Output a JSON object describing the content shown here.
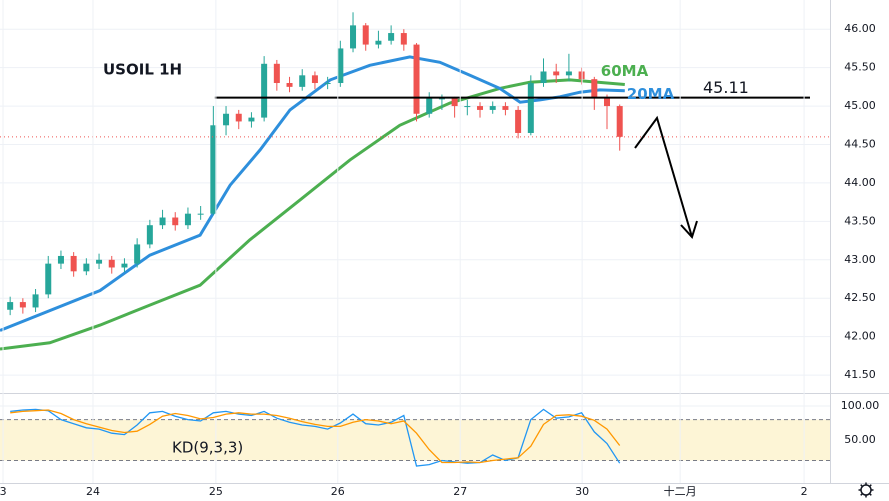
{
  "chart_data": [
    {
      "type": "candlestick",
      "title": "USOIL 1H",
      "x": [
        2,
        4.5,
        7,
        9.5,
        12,
        14.5,
        17,
        19.5,
        22,
        24.5,
        27,
        29.5,
        32,
        34.5,
        37,
        39.5,
        42,
        44.5,
        47,
        49.5,
        52,
        54.5,
        57,
        59.5,
        62,
        64.5,
        67,
        69.5,
        72,
        74.5,
        77,
        79.5,
        82,
        84.5,
        87,
        89.5,
        92,
        94.5,
        97,
        99.5,
        102,
        104.5,
        107,
        109.5,
        112,
        114.5,
        117,
        119.5,
        122
      ],
      "open": [
        42.35,
        42.45,
        42.38,
        42.55,
        42.95,
        43.05,
        42.85,
        42.95,
        43.0,
        42.9,
        42.95,
        43.2,
        43.45,
        43.55,
        43.45,
        43.6,
        43.6,
        44.75,
        44.9,
        44.8,
        44.85,
        45.55,
        45.3,
        45.25,
        45.4,
        45.3,
        45.3,
        45.75,
        46.05,
        45.8,
        45.85,
        45.95,
        45.8,
        44.9,
        45.1,
        45.1,
        45.0,
        45.0,
        44.95,
        45.0,
        44.95,
        44.65,
        45.3,
        45.45,
        45.4,
        45.45,
        45.35,
        45.1,
        45.0
      ],
      "high": [
        42.52,
        42.5,
        42.62,
        43.05,
        43.12,
        43.1,
        43.02,
        43.08,
        43.05,
        43.02,
        43.28,
        43.52,
        43.65,
        43.62,
        43.68,
        43.7,
        45.0,
        45.0,
        44.95,
        44.92,
        45.65,
        45.6,
        45.38,
        45.48,
        45.45,
        45.38,
        45.85,
        46.22,
        46.08,
        45.98,
        46.05,
        46.0,
        45.82,
        45.18,
        45.15,
        45.12,
        45.08,
        45.05,
        45.06,
        45.05,
        45.0,
        45.4,
        45.62,
        45.55,
        45.68,
        45.5,
        45.38,
        45.15,
        45.02
      ],
      "low": [
        42.28,
        42.3,
        42.32,
        42.5,
        42.88,
        42.78,
        42.8,
        42.88,
        42.82,
        42.84,
        42.9,
        43.15,
        43.4,
        43.38,
        43.4,
        43.52,
        43.58,
        44.62,
        44.7,
        44.72,
        44.8,
        45.2,
        45.18,
        45.2,
        45.22,
        45.22,
        45.25,
        45.7,
        45.72,
        45.75,
        45.8,
        45.72,
        44.8,
        44.85,
        44.95,
        44.85,
        44.88,
        44.85,
        44.9,
        44.88,
        44.58,
        44.62,
        45.25,
        45.3,
        45.32,
        45.28,
        44.95,
        44.7,
        44.42
      ],
      "close": [
        42.45,
        42.38,
        42.55,
        42.95,
        43.05,
        42.85,
        42.95,
        43.0,
        42.9,
        42.95,
        43.2,
        43.45,
        43.55,
        43.45,
        43.6,
        43.6,
        44.75,
        44.9,
        44.8,
        44.85,
        45.55,
        45.3,
        45.25,
        45.4,
        45.3,
        45.3,
        45.75,
        46.05,
        45.8,
        45.85,
        45.95,
        45.8,
        44.9,
        45.1,
        45.1,
        45.0,
        45.0,
        44.95,
        45.0,
        44.95,
        44.65,
        45.3,
        45.45,
        45.4,
        45.45,
        45.35,
        45.1,
        45.0,
        44.6
      ],
      "up_color": "#26a69a",
      "down_color": "#ef5350",
      "series": [
        {
          "name": "60MA",
          "color": "#4caf50",
          "x": [
            0,
            9.8,
            19.7,
            29.5,
            39.4,
            49.2,
            59.1,
            68.9,
            78.7,
            88.6,
            98.4,
            104.3,
            112.2,
            123
          ],
          "values": [
            41.84,
            41.92,
            42.15,
            42.41,
            42.67,
            43.26,
            43.78,
            44.3,
            44.75,
            45.04,
            45.23,
            45.31,
            45.34,
            45.28
          ]
        },
        {
          "name": "20MA",
          "color": "#2e8fdc",
          "x": [
            0,
            19.7,
            29.5,
            39.4,
            45.3,
            51.2,
            57.1,
            65,
            72.8,
            80.7,
            86.6,
            92.5,
            98.4,
            102.4,
            106.3,
            110.2,
            114.2,
            118.1,
            123
          ],
          "values": [
            42.08,
            42.6,
            43.06,
            43.32,
            43.97,
            44.43,
            44.95,
            45.34,
            45.53,
            45.64,
            45.57,
            45.4,
            45.23,
            45.05,
            45.08,
            45.12,
            45.18,
            45.21,
            45.2
          ]
        }
      ],
      "level": 45.11,
      "xlim": [
        0,
        163.4
      ],
      "ylim": [
        41.28,
        46.38
      ],
      "yticks": [
        {
          "value": 46,
          "label": "46.00"
        },
        {
          "value": 45.5,
          "label": "45.50"
        },
        {
          "value": 45,
          "label": "45.00"
        },
        {
          "value": 44.5,
          "label": "44.50"
        },
        {
          "value": 44,
          "label": "44.00"
        },
        {
          "value": 43.5,
          "label": "43.50"
        },
        {
          "value": 43,
          "label": "43.00"
        },
        {
          "value": 42.5,
          "label": "42.50"
        },
        {
          "value": 42,
          "label": "42.00"
        },
        {
          "value": 41.5,
          "label": "41.50"
        }
      ],
      "grid": true
    },
    {
      "type": "line",
      "title": "KD(9,3,3)",
      "x": [
        2,
        4.5,
        7,
        9.5,
        12,
        14.5,
        17,
        19.5,
        22,
        24.5,
        27,
        29.5,
        32,
        34.5,
        37,
        39.5,
        42,
        44.5,
        47,
        49.5,
        52,
        54.5,
        57,
        59.5,
        62,
        64.5,
        67,
        69.5,
        72,
        74.5,
        77,
        79.5,
        82,
        84.5,
        87,
        89.5,
        92,
        94.5,
        97,
        99.5,
        102,
        104.5,
        107,
        109.5,
        112,
        114.5,
        117,
        119.5,
        122
      ],
      "series": [
        {
          "color": "#2196f3",
          "values": [
            92,
            94,
            95,
            93,
            80,
            74,
            68,
            66,
            60,
            58,
            72,
            90,
            92,
            85,
            80,
            78,
            90,
            92,
            88,
            86,
            92,
            82,
            76,
            72,
            70,
            66,
            75,
            88,
            74,
            72,
            76,
            86,
            12,
            14,
            20,
            18,
            16,
            17,
            28,
            20,
            24,
            80,
            95,
            82,
            84,
            90,
            62,
            45,
            16
          ]
        },
        {
          "color": "#ff9800",
          "values": [
            90,
            92,
            93,
            94,
            89,
            80,
            74,
            69,
            64,
            61,
            63,
            73,
            85,
            89,
            86,
            81,
            83,
            88,
            90,
            88,
            88,
            86,
            82,
            77,
            73,
            70,
            70,
            76,
            80,
            78,
            74,
            78,
            60,
            36,
            17,
            17,
            18,
            17,
            20,
            22,
            24,
            41,
            73,
            86,
            87,
            85,
            79,
            66,
            42
          ]
        }
      ],
      "levels": [
        20,
        80
      ],
      "xlim": [
        0,
        163.4
      ],
      "ylim": [
        -13,
        119
      ],
      "yticks": [
        {
          "value": 100,
          "label": "100.00"
        },
        {
          "value": 50,
          "label": "50.00"
        }
      ],
      "xticks": [
        {
          "value": 0.6,
          "label": "3"
        },
        {
          "value": 18.3,
          "label": "24"
        },
        {
          "value": 42.5,
          "label": "25"
        },
        {
          "value": 66.5,
          "label": "26"
        },
        {
          "value": 90.6,
          "label": "27"
        },
        {
          "value": 114.6,
          "label": "30"
        },
        {
          "value": 133.9,
          "label": "十二月"
        },
        {
          "value": 158.3,
          "label": "2"
        }
      ],
      "grid": true
    }
  ]
}
